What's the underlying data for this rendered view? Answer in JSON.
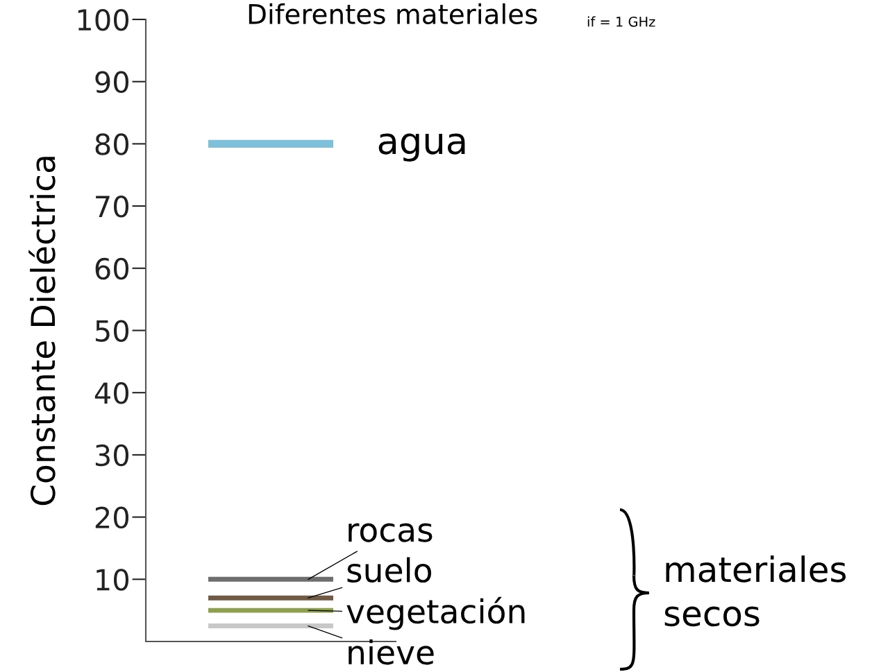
{
  "chart_data": {
    "type": "line",
    "title": "Diferentes materiales",
    "ylabel": "Constante Dieléctrica",
    "categories": [
      null,
      null
    ],
    "series": [
      {
        "name": "agua",
        "color": "#7ec0da",
        "values": [
          80,
          80
        ]
      },
      {
        "name": "rocas",
        "color": "#6e6e6e",
        "values": [
          10,
          10
        ]
      },
      {
        "name": "suelo",
        "color": "#6f5a45",
        "values": [
          7,
          7
        ]
      },
      {
        "name": "vegetación",
        "color": "#8ea04e",
        "values": [
          5,
          5
        ]
      },
      {
        "name": "nieve",
        "color": "#c8c8c8",
        "values": [
          2.5,
          2.5
        ]
      }
    ],
    "ylim": [
      0,
      100
    ],
    "yticks": [
      10,
      20,
      30,
      40,
      50,
      60,
      70,
      80,
      90,
      100
    ],
    "tick_labels": "y",
    "grid": false,
    "legend": false,
    "marker": "none",
    "line_style": "solid",
    "annotations": [
      "if = 1 GHz",
      "materiales secos"
    ]
  }
}
